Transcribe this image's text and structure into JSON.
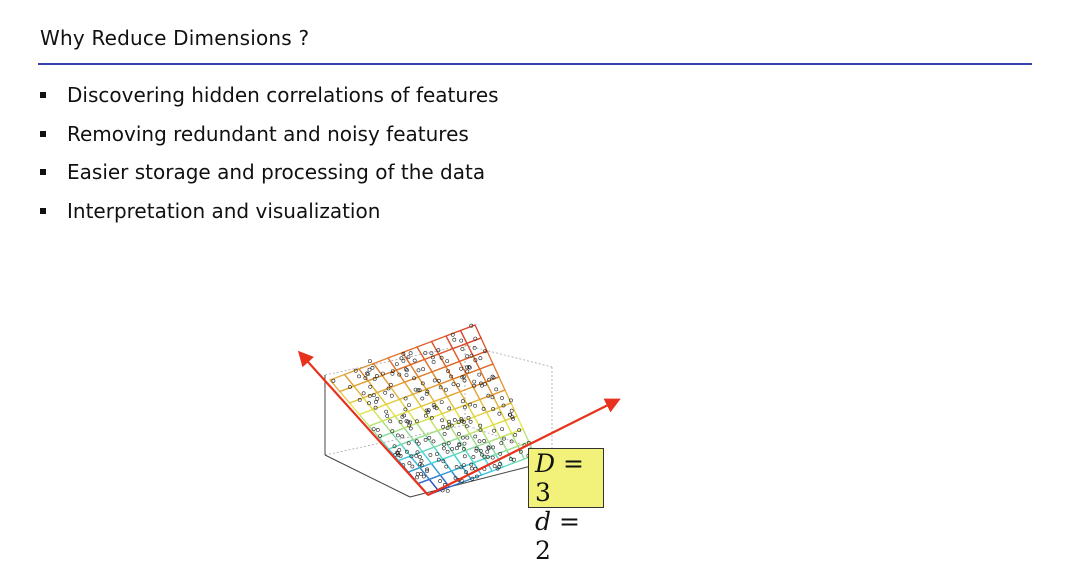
{
  "slide": {
    "title": "Why Reduce Dimensions ?",
    "bullets": [
      "Discovering hidden correlations of features",
      "Removing redundant and noisy features",
      "Easier storage and processing of the data",
      "Interpretation and visualization"
    ]
  },
  "figure": {
    "box": {
      "line1_var": "D",
      "line1_rest": " = 3",
      "line2_var": "d",
      "line2_rest": " = 2"
    },
    "colors": {
      "rule": "#3a3fb0",
      "arrow": "#e8321e",
      "box_fill": "#f2f27a",
      "surface_gradient": [
        "#1a0fb5",
        "#3fd4e0",
        "#e6e64a",
        "#e07a2a",
        "#d8352a"
      ]
    }
  }
}
